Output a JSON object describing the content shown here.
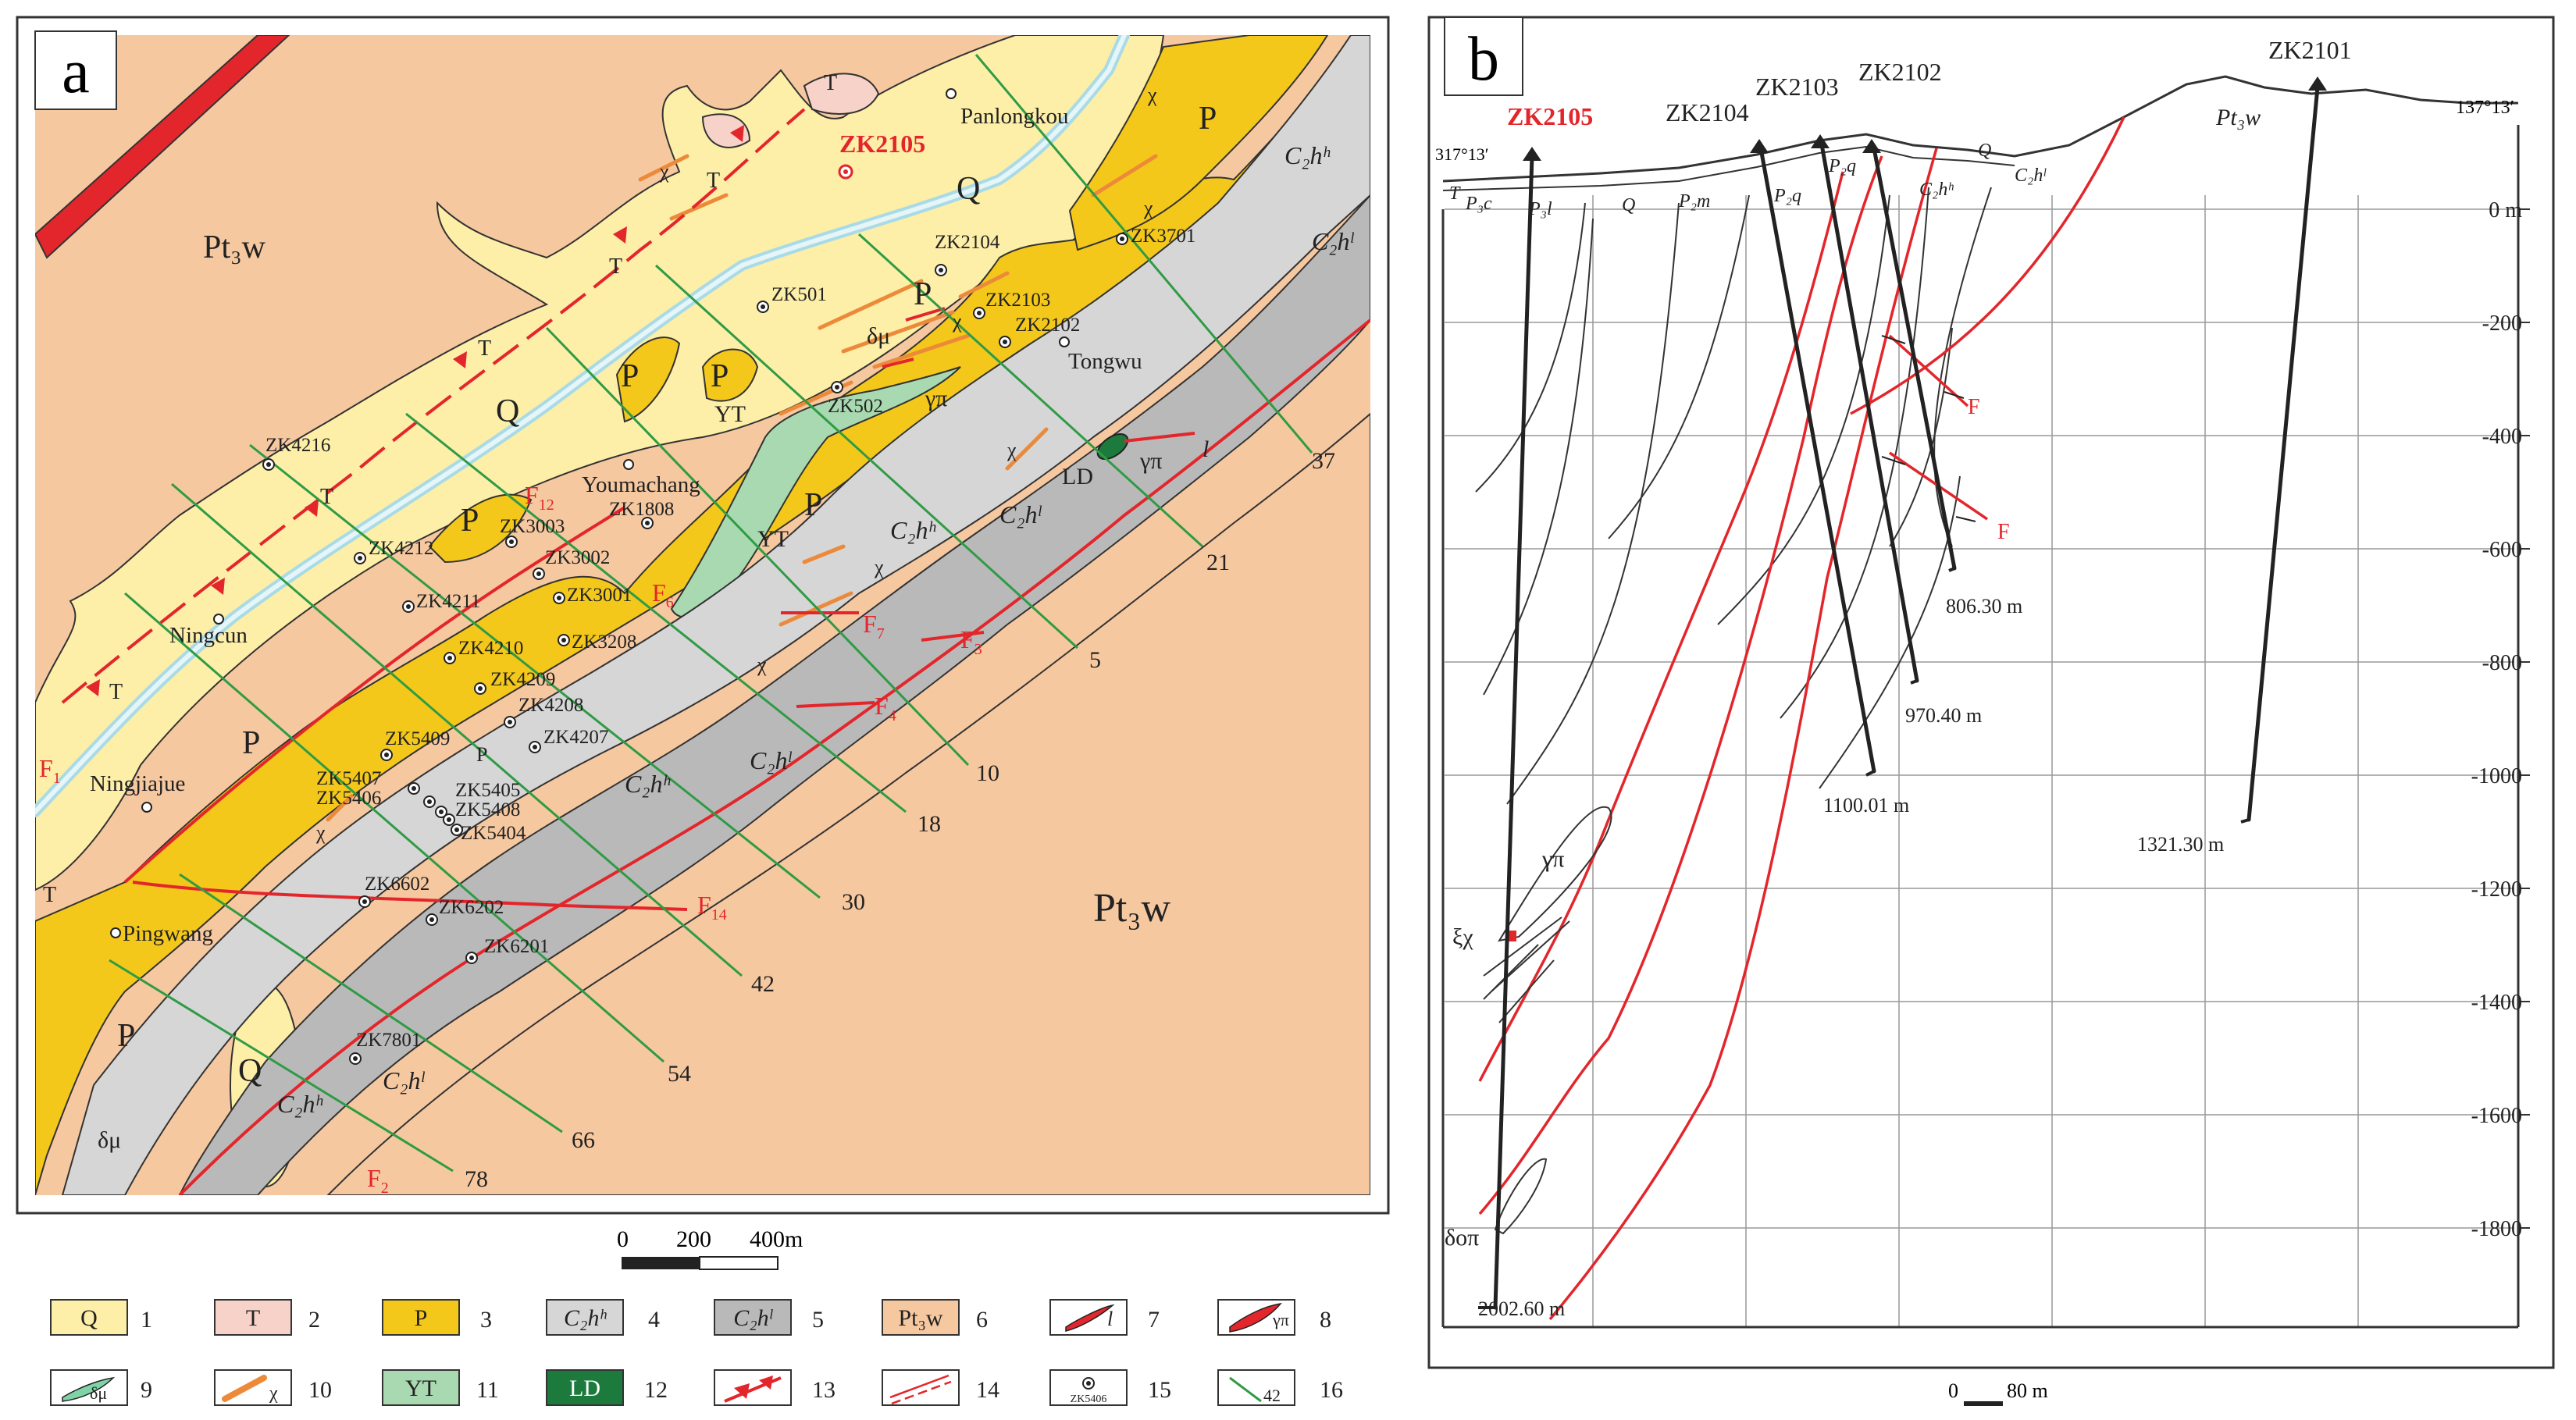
{
  "panel_a": {
    "letter": "a",
    "units": {
      "Pt3w_nw": "Pt₃w",
      "Pt3w_se": "Pt₃w",
      "Q_main": "Q",
      "Q_sw": "Q",
      "P1": "P",
      "P2": "P",
      "P3": "P",
      "P4": "P",
      "P5": "P",
      "P6": "P",
      "P7": "P",
      "P_small": "P",
      "T1": "T",
      "T2": "T",
      "T3": "T",
      "T4": "T",
      "T5": "T",
      "T6": "T",
      "T7": "T",
      "YT1": "YT",
      "YT2": "YT",
      "LD": "LD",
      "C2hh_a": "C₂hʰ",
      "C2hh_b": "C₂hʰ",
      "C2hh_c": "C₂hʰ",
      "C2hh_d": "C₂hʰ",
      "C2hl_a": "C₂hˡ",
      "C2hl_b": "C₂hˡ",
      "C2hl_c": "C₂hˡ",
      "C2hl_d": "C₂hˡ",
      "C2hl_e": "C₂hˡ",
      "dmu_a": "δμ",
      "dmu_b": "δμ",
      "gpi_a": "γπ",
      "gpi_b": "γπ",
      "lamp": "l",
      "chi1": "χ",
      "chi2": "χ",
      "chi3": "χ",
      "chi4": "χ",
      "chi5": "χ",
      "chi6": "χ",
      "chi7": "χ",
      "chi8": "χ"
    },
    "places": [
      "Panlongkou",
      "Tongwu",
      "Youmachang",
      "Ningcun",
      "Ningjiajue",
      "Pingwang"
    ],
    "highlight_hole": "ZK2105",
    "boreholes": [
      "ZK2104",
      "ZK2103",
      "ZK2102",
      "ZK501",
      "ZK502",
      "ZK3701",
      "ZK4216",
      "ZK1808",
      "ZK3003",
      "ZK3002",
      "ZK3001",
      "ZK3208",
      "ZK4212",
      "ZK4211",
      "ZK4210",
      "ZK4209",
      "ZK4208",
      "ZK4207",
      "ZK5409",
      "ZK5407",
      "ZK5406",
      "ZK5405",
      "ZK5408",
      "ZK5404",
      "ZK6602",
      "ZK6202",
      "ZK6201",
      "ZK7801"
    ],
    "faults": {
      "F1": "F",
      "F1s": "1",
      "F2": "F",
      "F2s": "2",
      "F3": "F",
      "F3s": "3",
      "F4": "F",
      "F4s": "4",
      "F6": "F",
      "F6s": "6",
      "F7": "F",
      "F7s": "7",
      "F12": "F",
      "F12s": "12",
      "F14": "F",
      "F14s": "14"
    },
    "section_lines": [
      "37",
      "21",
      "5",
      "10",
      "18",
      "30",
      "42",
      "54",
      "66",
      "78"
    ],
    "scale": {
      "t0": "0",
      "t1": "200",
      "t2": "400m"
    }
  },
  "panel_b": {
    "letter": "b",
    "holes": [
      "ZK2105",
      "ZK2104",
      "ZK2103",
      "ZK2102",
      "ZK2101"
    ],
    "azimuth_left": "317°13′",
    "azimuth_right": "137°13′",
    "depths": [
      "2002.60 m",
      "1100.01 m",
      "970.40 m",
      "806.30 m",
      "1321.30 m"
    ],
    "surface_units": [
      "T",
      "P₃c",
      "P₃l",
      "Q",
      "P₂m",
      "P₂q",
      "P₂q",
      "C₂hʰ",
      "Q",
      "C₂hˡ",
      "Pt₃w"
    ],
    "depth_axis": [
      "0 m",
      "-200",
      "-400",
      "-600",
      "-800",
      "-1000",
      "-1200",
      "-1400",
      "-1600",
      "-1800"
    ],
    "fault_labels": [
      "F",
      "F"
    ],
    "intrusions": [
      "γπ",
      "ξχ",
      "δοπ"
    ],
    "scale": {
      "t0": "0",
      "t1": "80 m"
    }
  },
  "legend": {
    "items": [
      {
        "num": "1",
        "sym": "Q"
      },
      {
        "num": "2",
        "sym": "T"
      },
      {
        "num": "3",
        "sym": "P"
      },
      {
        "num": "4",
        "sym": "C₂hʰ"
      },
      {
        "num": "5",
        "sym": "C₂hˡ"
      },
      {
        "num": "6",
        "sym": "Pt₃w"
      },
      {
        "num": "7",
        "sym": "l"
      },
      {
        "num": "8",
        "sym": "γπ"
      },
      {
        "num": "9",
        "sym": "δμ"
      },
      {
        "num": "10",
        "sym": "χ"
      },
      {
        "num": "11",
        "sym": "YT"
      },
      {
        "num": "12",
        "sym": "LD"
      },
      {
        "num": "13",
        "sym": ""
      },
      {
        "num": "14",
        "sym": ""
      },
      {
        "num": "15",
        "sym": "ZK5406"
      },
      {
        "num": "16",
        "sym": "42"
      }
    ]
  },
  "colors": {
    "Pt3w": "#f6c8a0",
    "Q": "#fdeea8",
    "P": "#f4c81a",
    "T": "#f7d2c8",
    "C2hh": "#d6d6d6",
    "C2hl": "#b9b9b9",
    "YT": "#a9d9b0",
    "LD": "#1b7a3c",
    "fault": "#e3262b",
    "section": "#2f9b45",
    "dyke": "#ec8a3a",
    "river": "#cfe9ee"
  }
}
